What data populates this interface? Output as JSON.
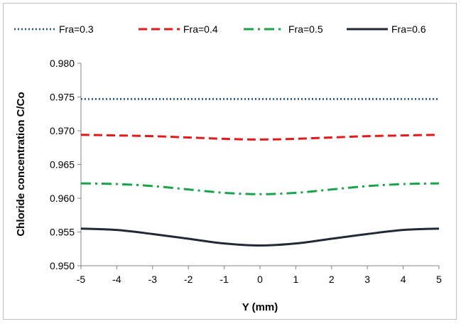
{
  "chart_data": {
    "type": "line",
    "xlabel": "Y (mm)",
    "ylabel": "Chloride concentration C/Co",
    "xlim": [
      -5,
      5
    ],
    "ylim": [
      0.95,
      0.98
    ],
    "x_ticks": [
      -5,
      -4,
      -3,
      -2,
      -1,
      0,
      1,
      2,
      3,
      4,
      5
    ],
    "y_ticks": [
      "0.950",
      "0.955",
      "0.960",
      "0.965",
      "0.970",
      "0.975",
      "0.980"
    ],
    "grid": false,
    "legend_position": "top",
    "x": [
      -5,
      -4,
      -3,
      -2,
      -1,
      0,
      1,
      2,
      3,
      4,
      5
    ],
    "series": [
      {
        "name": "Fra=0.3",
        "color": "#1f4e79",
        "style": "dotted",
        "values": [
          0.9747,
          0.9747,
          0.9747,
          0.9747,
          0.9747,
          0.9747,
          0.9747,
          0.9747,
          0.9747,
          0.9747,
          0.9747
        ]
      },
      {
        "name": "Fra=0.4",
        "color": "#e31a1c",
        "style": "dashed",
        "values": [
          0.9694,
          0.9693,
          0.9692,
          0.969,
          0.9688,
          0.9687,
          0.9688,
          0.969,
          0.9692,
          0.9693,
          0.9694
        ]
      },
      {
        "name": "Fra=0.5",
        "color": "#1aa34a",
        "style": "dashdot",
        "values": [
          0.9622,
          0.9621,
          0.9618,
          0.9613,
          0.9608,
          0.9606,
          0.9608,
          0.9613,
          0.9618,
          0.9621,
          0.9622
        ]
      },
      {
        "name": "Fra=0.6",
        "color": "#1f2a36",
        "style": "solid",
        "values": [
          0.9555,
          0.9553,
          0.9547,
          0.954,
          0.9533,
          0.953,
          0.9533,
          0.954,
          0.9547,
          0.9553,
          0.9555
        ]
      }
    ]
  }
}
